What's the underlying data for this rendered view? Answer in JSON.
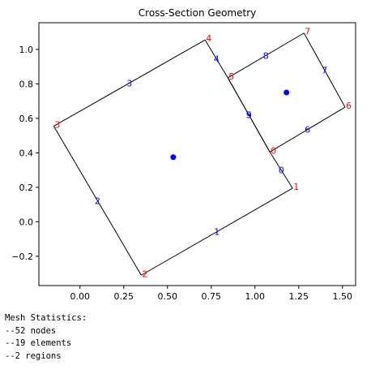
{
  "chart_data": {
    "type": "line",
    "title": "Cross-Section Geometry",
    "xlabel": "",
    "ylabel": "",
    "xlim": [
      -0.235,
      1.575
    ],
    "ylim": [
      -0.37,
      1.155
    ],
    "xticks": [
      0.0,
      0.25,
      0.5,
      0.75,
      1.0,
      1.25,
      1.5
    ],
    "xtick_labels": [
      "0.00",
      "0.25",
      "0.50",
      "0.75",
      "1.00",
      "1.25",
      "1.50"
    ],
    "yticks": [
      -0.2,
      0.0,
      0.2,
      0.4,
      0.6,
      0.8,
      1.0
    ],
    "ytick_labels": [
      "−0.2",
      "0.0",
      "0.2",
      "0.4",
      "0.6",
      "0.8",
      "1.0"
    ],
    "grid": false,
    "points": [
      {
        "label": "0",
        "x": 1.085,
        "y": 0.405
      },
      {
        "label": "1",
        "x": 1.215,
        "y": 0.195
      },
      {
        "label": "2",
        "x": 0.35,
        "y": -0.31
      },
      {
        "label": "3",
        "x": -0.15,
        "y": 0.555
      },
      {
        "label": "4",
        "x": 0.715,
        "y": 1.055
      },
      {
        "label": "5",
        "x": 0.845,
        "y": 0.835
      },
      {
        "label": "6",
        "x": 1.515,
        "y": 0.665
      },
      {
        "label": "7",
        "x": 1.28,
        "y": 1.095
      }
    ],
    "segments": [
      {
        "label": "0",
        "from": "0",
        "to": "1"
      },
      {
        "label": "1",
        "from": "1",
        "to": "2"
      },
      {
        "label": "2",
        "from": "2",
        "to": "3"
      },
      {
        "label": "3",
        "from": "3",
        "to": "4"
      },
      {
        "label": "4",
        "from": "4",
        "to": "5"
      },
      {
        "label": "5",
        "from": "5",
        "to": "0"
      },
      {
        "label": "6",
        "from": "0",
        "to": "6"
      },
      {
        "label": "7",
        "from": "6",
        "to": "7"
      },
      {
        "label": "8",
        "from": "7",
        "to": "5"
      },
      {
        "label": "9",
        "from": "0",
        "to": "5"
      }
    ],
    "region_centroids": [
      {
        "x": 0.533,
        "y": 0.375
      },
      {
        "x": 1.18,
        "y": 0.75
      }
    ],
    "colors": {
      "point_label": "#ff0000",
      "segment_label": "#0000ff",
      "centroid": "#0000ff",
      "line": "#000000"
    }
  },
  "stats": {
    "lines": [
      "Mesh Statistics:",
      "--52 nodes",
      "--19 elements",
      "--2 regions"
    ]
  }
}
